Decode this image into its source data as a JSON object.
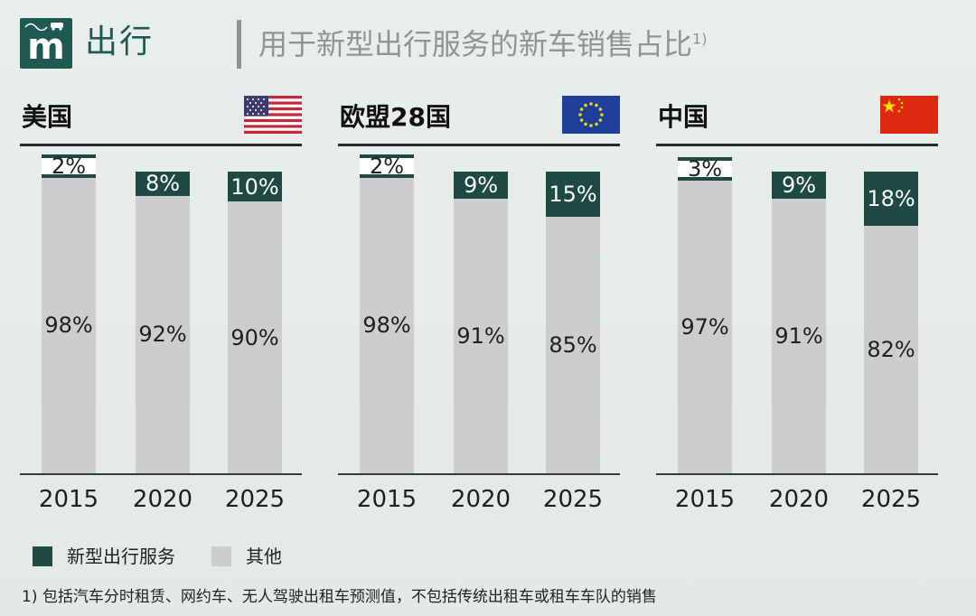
{
  "header": {
    "logo_letter": "m",
    "section_title": "出行",
    "chart_title": "用于新型出行服务的新车销售占比",
    "chart_title_note": "1)"
  },
  "colors": {
    "new_mobility": "#1f4a43",
    "other": "#cdcdcd",
    "accent": "#1f5a52"
  },
  "legend": [
    {
      "name": "新型出行服务",
      "color": "#1f4a43"
    },
    {
      "name": "其他",
      "color": "#cdcdcd"
    }
  ],
  "footnote": "1) 包括汽车分时租赁、网约车、无人驾驶出租车预测值，不包括传统出租车或租车车队的销售",
  "chart_data": [
    {
      "type": "bar",
      "stacked": true,
      "title": "美国",
      "flag": "us-flag",
      "categories": [
        "2015",
        "2020",
        "2025"
      ],
      "series": [
        {
          "name": "新型出行服务",
          "values": [
            2,
            8,
            10
          ],
          "labels": [
            "2%",
            "8%",
            "10%"
          ]
        },
        {
          "name": "其他",
          "values": [
            98,
            92,
            90
          ],
          "labels": [
            "98%",
            "92%",
            "90%"
          ]
        }
      ],
      "ylim": [
        0,
        100
      ]
    },
    {
      "type": "bar",
      "stacked": true,
      "title": "欧盟28国",
      "flag": "eu-flag",
      "categories": [
        "2015",
        "2020",
        "2025"
      ],
      "series": [
        {
          "name": "新型出行服务",
          "values": [
            2,
            9,
            15
          ],
          "labels": [
            "2%",
            "9%",
            "15%"
          ]
        },
        {
          "name": "其他",
          "values": [
            98,
            91,
            85
          ],
          "labels": [
            "98%",
            "91%",
            "85%"
          ]
        }
      ],
      "ylim": [
        0,
        100
      ]
    },
    {
      "type": "bar",
      "stacked": true,
      "title": "中国",
      "flag": "cn-flag",
      "categories": [
        "2015",
        "2020",
        "2025"
      ],
      "series": [
        {
          "name": "新型出行服务",
          "values": [
            3,
            9,
            18
          ],
          "labels": [
            "3%",
            "9%",
            "18%"
          ]
        },
        {
          "name": "其他",
          "values": [
            97,
            91,
            82
          ],
          "labels": [
            "97%",
            "91%",
            "82%"
          ]
        }
      ],
      "ylim": [
        0,
        100
      ]
    }
  ]
}
